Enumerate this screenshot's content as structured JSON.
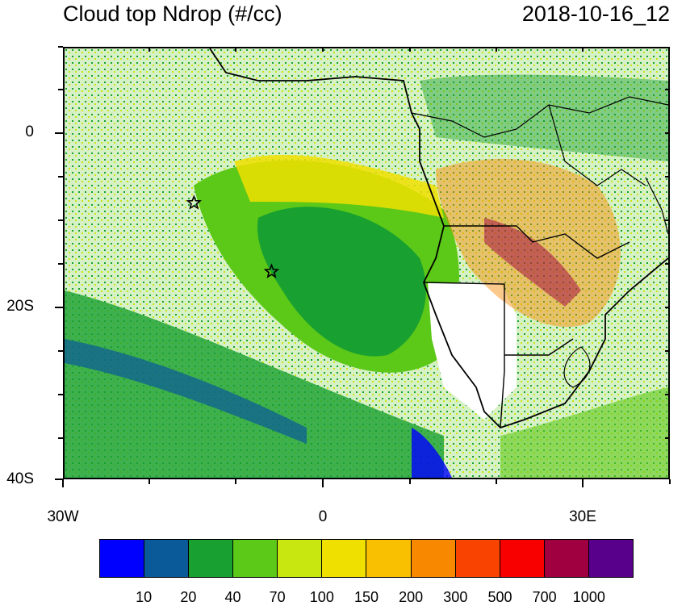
{
  "title": {
    "left": "Cloud top Ndrop (#/cc)",
    "right": "2018-10-16_12"
  },
  "axes": {
    "y_labels": [
      "0",
      "20S",
      "40S"
    ],
    "x_labels": [
      "30W",
      "0",
      "30E"
    ]
  },
  "markers": [
    {
      "name": "star",
      "lon": -15,
      "lat": -8
    },
    {
      "name": "star",
      "lon": -6,
      "lat": -16
    }
  ],
  "colorbar": {
    "colors": [
      "#0000ff",
      "#0a5a9a",
      "#18a030",
      "#5cc818",
      "#c8e610",
      "#f0e000",
      "#f8c000",
      "#f88800",
      "#f84400",
      "#f80000",
      "#a00040",
      "#58008c"
    ],
    "labels": [
      "10",
      "20",
      "40",
      "70",
      "100",
      "150",
      "200",
      "300",
      "500",
      "700",
      "1000"
    ]
  }
}
